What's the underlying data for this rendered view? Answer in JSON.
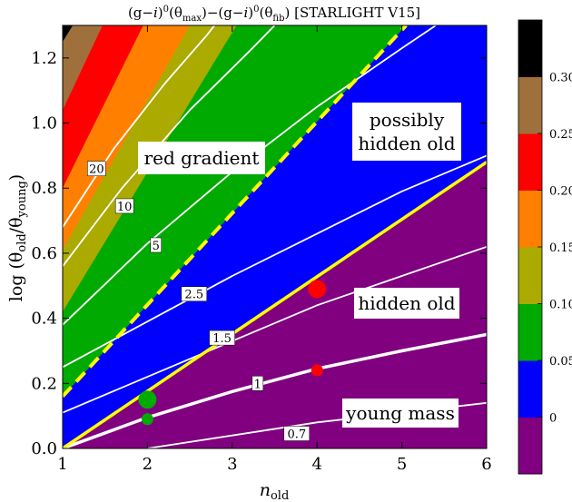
{
  "chart_data": {
    "type": "heatmap",
    "title": "(g−i)⁰(θ_max)−(g−i)⁰(θ_fib) [STARLIGHT V15]",
    "title_parts": {
      "a": "(g−",
      "b": "i",
      "c": ")",
      "d": "0",
      "e": "(θ",
      "f": "max",
      "g": ")−(g−",
      "h": "i",
      "i": ")",
      "j": "0",
      "k": "(θ",
      "l": "fib",
      "m": ") [STARLIGHT V15]"
    },
    "xlabel": {
      "main": "n",
      "sub": "old"
    },
    "ylabel": {
      "a": "log (θ",
      "b": "old",
      "c": "/θ",
      "d": "young",
      "e": ")"
    },
    "xlim": [
      1,
      6
    ],
    "ylim": [
      0,
      1.3
    ],
    "x_ticks": [
      "1",
      "2",
      "3",
      "4",
      "5",
      "6"
    ],
    "y_ticks": [
      "0.0",
      "0.2",
      "0.4",
      "0.6",
      "0.8",
      "1.0",
      "1.2"
    ],
    "colorbar": {
      "ticks": [
        "0.30",
        "0.25",
        "0.20",
        "0.15",
        "0.10",
        "0.05",
        "0"
      ],
      "bands": [
        {
          "color": "#800080",
          "range": "< 0"
        },
        {
          "color": "#0000ff",
          "range": "0 – 0.05"
        },
        {
          "color": "#00aa00",
          "range": "0.05 – 0.10"
        },
        {
          "color": "#aaaa00",
          "range": "0.10 – 0.15"
        },
        {
          "color": "#ff8000",
          "range": "0.15 – 0.20"
        },
        {
          "color": "#ff0000",
          "range": "0.20 – 0.25"
        },
        {
          "color": "#a0703c",
          "range": "0.25 – 0.30"
        },
        {
          "color": "#000000",
          "range": "> 0.30"
        }
      ]
    },
    "contour_labels": [
      "20",
      "10",
      "5",
      "2.5",
      "1.5",
      "1",
      "0.7"
    ],
    "region_labels": [
      {
        "text": "red gradient",
        "color": "#000000"
      },
      {
        "text": "possibly\nhidden old",
        "lines": [
          "possibly",
          "hidden old"
        ],
        "color": "#ff0000"
      },
      {
        "text": "hidden old",
        "color": "#ff0000"
      },
      {
        "text": "young mass",
        "color": "#0000ff"
      }
    ],
    "points": [
      {
        "x": 2,
        "y": 0.15,
        "color": "#00aa00",
        "size": "large"
      },
      {
        "x": 2,
        "y": 0.09,
        "color": "#00aa00",
        "size": "small"
      },
      {
        "x": 4,
        "y": 0.49,
        "color": "#ff0000",
        "size": "large"
      },
      {
        "x": 4,
        "y": 0.24,
        "color": "#ff0000",
        "size": "small"
      }
    ],
    "boundary_lines": [
      {
        "name": "yellow-solid",
        "style": "solid",
        "color": "#ffff00",
        "x": [
          1,
          6
        ],
        "y": [
          0.0,
          0.88
        ]
      },
      {
        "name": "yellow-dashed",
        "style": "dashed",
        "color": "#ffff00",
        "x": [
          1,
          5.05
        ],
        "y": [
          0.16,
          1.3
        ]
      }
    ],
    "grid": false
  }
}
